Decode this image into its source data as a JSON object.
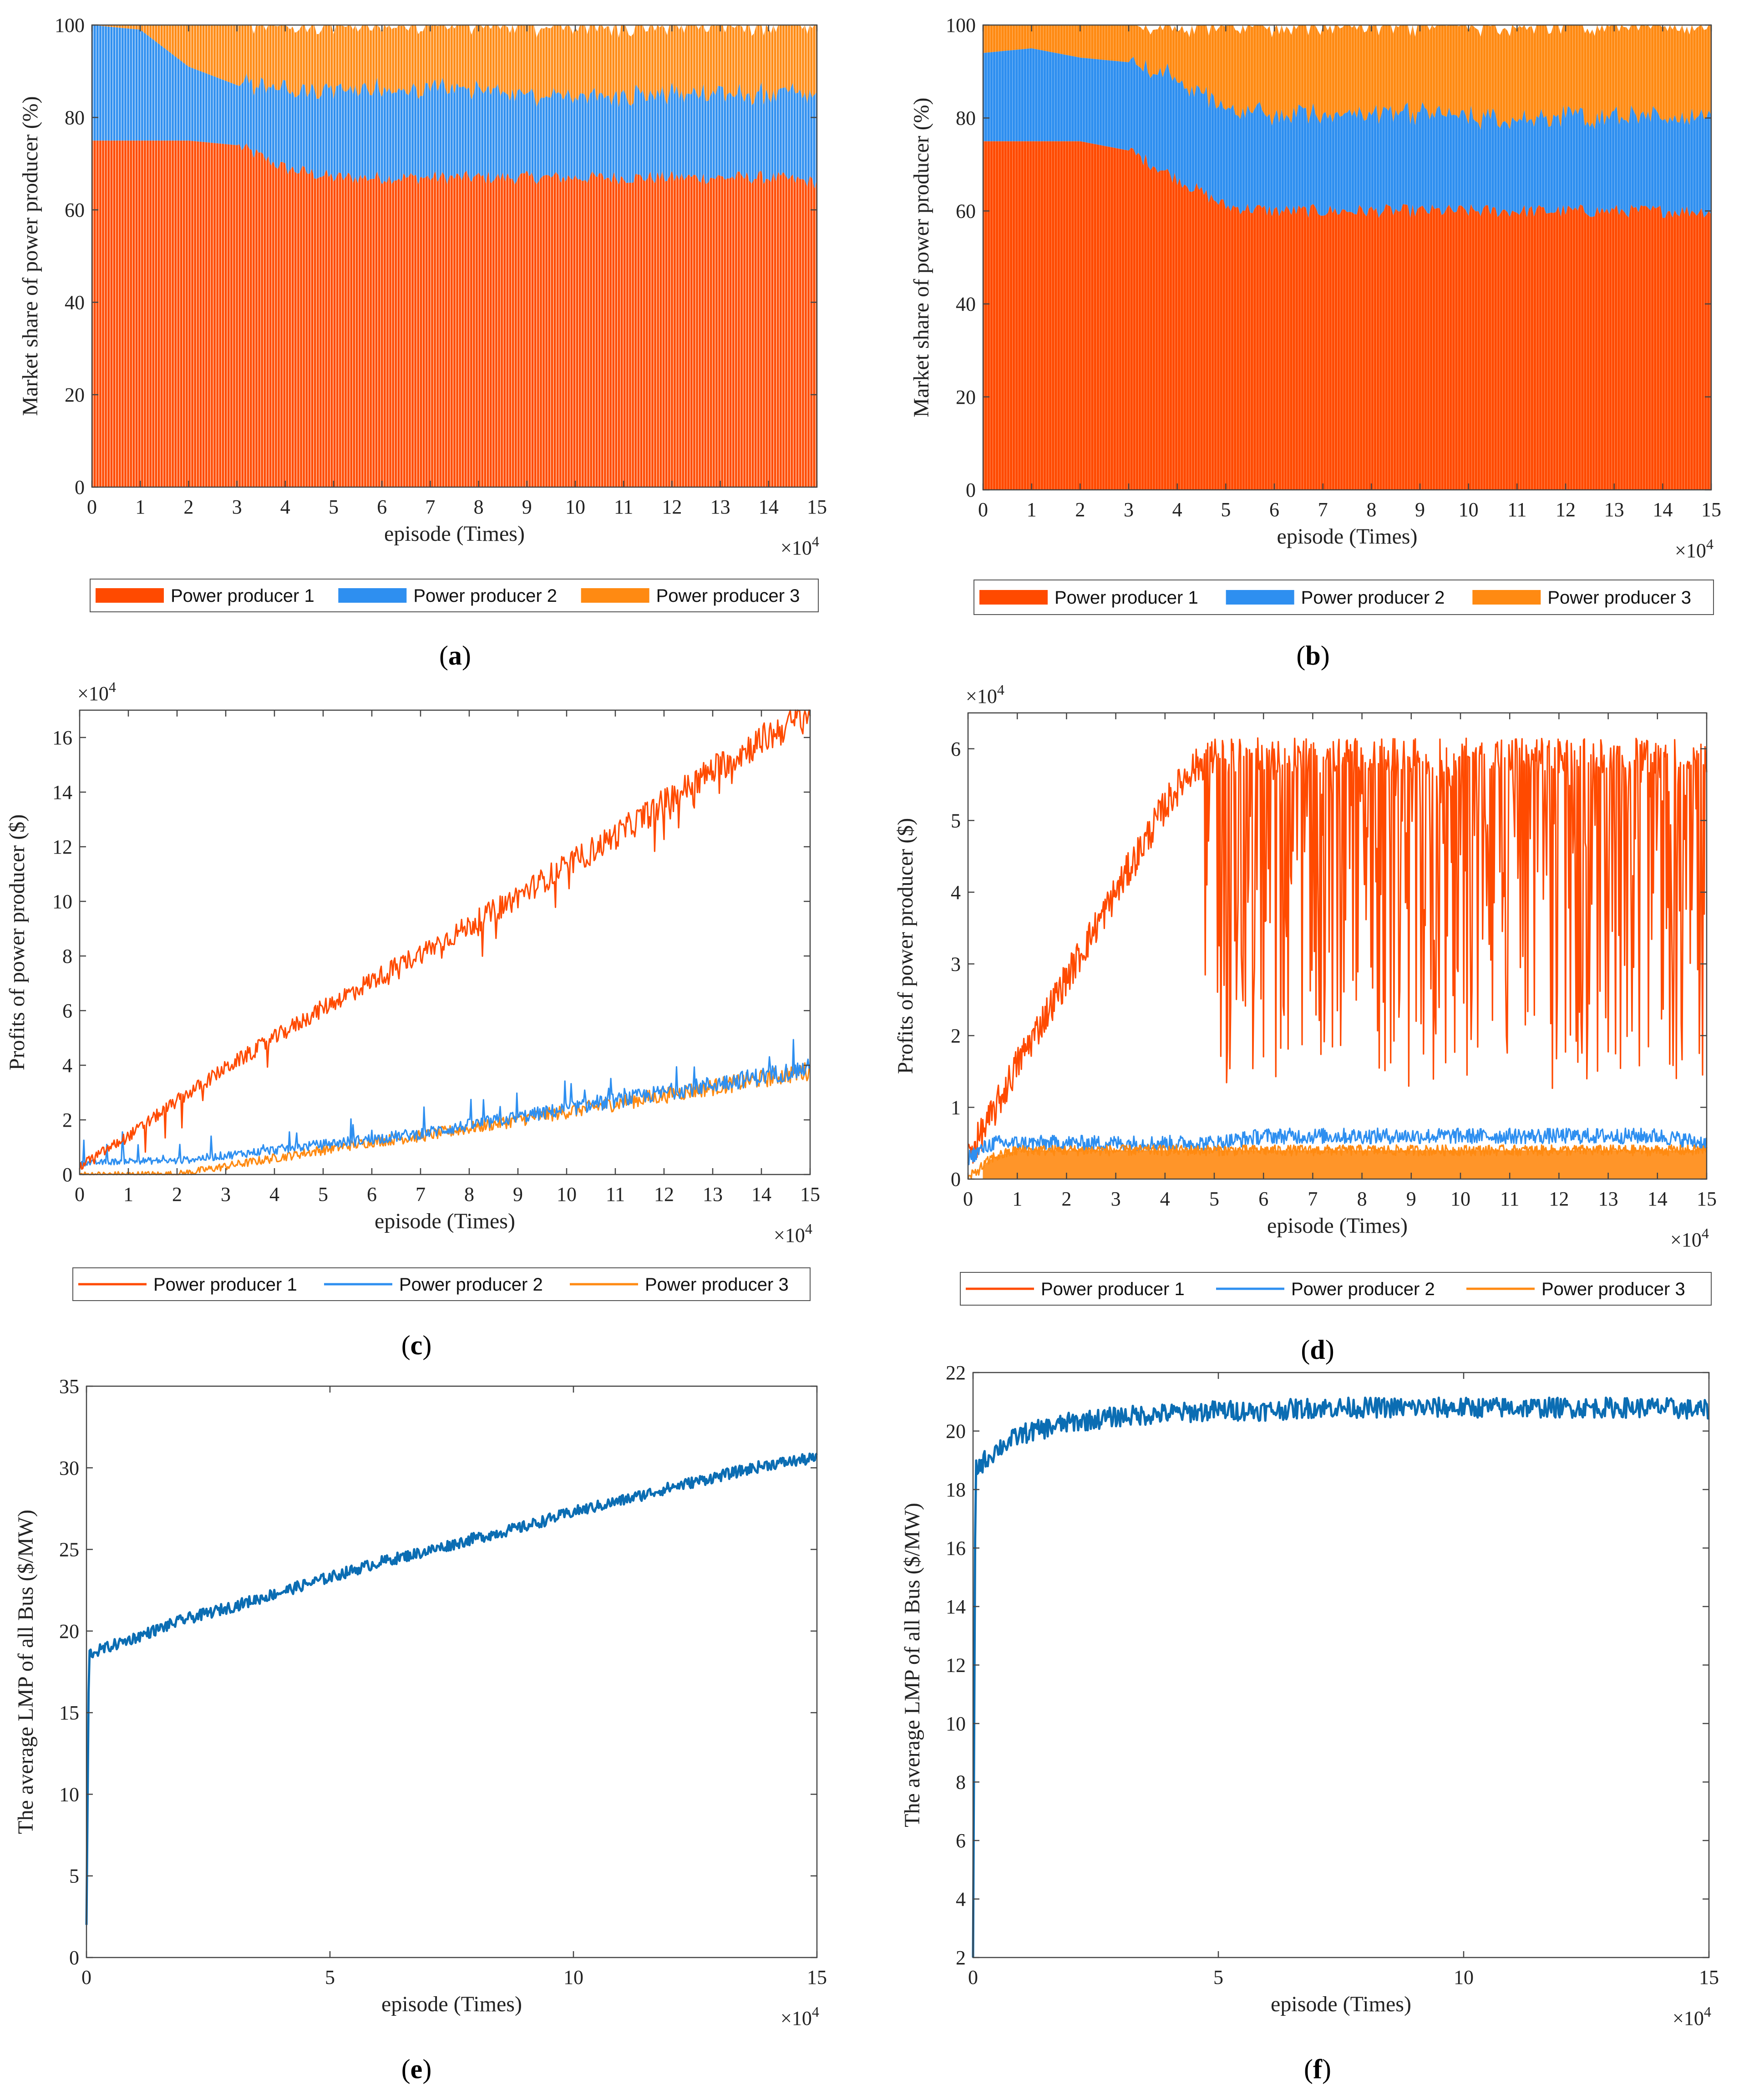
{
  "colors": {
    "p1": "#ff4a00",
    "p2": "#2e8ff0",
    "p3": "#ff8a12",
    "lmp": "#0b6db3",
    "axis": "#444444",
    "grid_text": "#222222"
  },
  "legend": {
    "labels": [
      "Power producer 1",
      "Power producer 2",
      "Power producer 3"
    ]
  },
  "chart_data": [
    {
      "id": "a",
      "type": "area",
      "panel_label": "a",
      "xlabel": "episode (Times)",
      "ylabel": "Market share of power producer (%)",
      "x_multiplier": "×10",
      "x_multiplier_exp": "4",
      "xlim": [
        0,
        15
      ],
      "ylim": [
        0,
        100
      ],
      "xticks": [
        0,
        1,
        2,
        3,
        4,
        5,
        6,
        7,
        8,
        9,
        10,
        11,
        12,
        13,
        14,
        15
      ],
      "yticks": [
        0,
        20,
        40,
        60,
        80,
        100
      ],
      "x": [
        0,
        1,
        2,
        3,
        4,
        5,
        6,
        7,
        8,
        9,
        10,
        11,
        12,
        13,
        14,
        15
      ],
      "series": [
        {
          "name": "Power producer 1",
          "values": [
            75,
            75,
            75,
            74,
            69,
            67,
            67,
            67,
            67,
            67,
            67,
            67,
            67,
            67,
            67,
            66
          ]
        },
        {
          "name": "Power producer 2",
          "values": [
            25,
            24,
            16,
            13,
            17,
            19,
            19,
            19,
            19,
            18,
            18,
            18,
            18,
            18,
            18,
            19
          ]
        },
        {
          "name": "Power producer 3",
          "values": [
            0,
            1,
            9,
            13,
            14,
            14,
            14,
            14,
            14,
            15,
            15,
            15,
            15,
            15,
            15,
            15
          ]
        }
      ]
    },
    {
      "id": "b",
      "type": "area",
      "panel_label": "b",
      "xlabel": "episode (Times)",
      "ylabel": "Market share of power producer (%)",
      "x_multiplier": "×10",
      "x_multiplier_exp": "4",
      "xlim": [
        0,
        15
      ],
      "ylim": [
        0,
        100
      ],
      "xticks": [
        0,
        1,
        2,
        3,
        4,
        5,
        6,
        7,
        8,
        9,
        10,
        11,
        12,
        13,
        14,
        15
      ],
      "yticks": [
        0,
        20,
        40,
        60,
        80,
        100
      ],
      "x": [
        0,
        1,
        2,
        3,
        4,
        5,
        6,
        7,
        8,
        9,
        10,
        11,
        12,
        13,
        14,
        15
      ],
      "series": [
        {
          "name": "Power producer 1",
          "values": [
            75,
            75,
            75,
            73,
            67,
            61,
            60,
            60,
            60,
            60,
            60,
            60,
            60,
            60,
            60,
            60
          ]
        },
        {
          "name": "Power producer 2",
          "values": [
            19,
            20,
            18,
            19,
            22,
            21,
            21,
            21,
            21,
            21,
            20,
            20,
            20,
            20,
            20,
            21
          ]
        },
        {
          "name": "Power producer 3",
          "values": [
            6,
            5,
            7,
            8,
            11,
            18,
            19,
            19,
            19,
            19,
            20,
            20,
            20,
            20,
            20,
            19
          ]
        }
      ]
    },
    {
      "id": "c",
      "type": "line",
      "panel_label": "c",
      "xlabel": "episode (Times)",
      "ylabel": "Profits of power producer ($)",
      "x_multiplier": "×10",
      "x_multiplier_exp": "4",
      "y_multiplier": "×10",
      "y_multiplier_exp": "4",
      "xlim": [
        0,
        15
      ],
      "ylim": [
        0,
        17
      ],
      "xticks": [
        0,
        1,
        2,
        3,
        4,
        5,
        6,
        7,
        8,
        9,
        10,
        11,
        12,
        13,
        14,
        15
      ],
      "yticks": [
        0,
        2,
        4,
        6,
        8,
        10,
        12,
        14,
        16
      ],
      "x": [
        0,
        1,
        2,
        3,
        4,
        5,
        6,
        7,
        8,
        9,
        10,
        11,
        12,
        13,
        14,
        15
      ],
      "series": [
        {
          "name": "Power producer 1",
          "values": [
            0.3,
            1.4,
            2.7,
            3.9,
            5.0,
            6.1,
            7.1,
            8.1,
            9.1,
            10.2,
            11.3,
            12.4,
            13.6,
            14.8,
            15.9,
            16.9
          ]
        },
        {
          "name": "Power producer 2",
          "values": [
            0.4,
            0.5,
            0.5,
            0.7,
            0.9,
            1.1,
            1.3,
            1.5,
            1.8,
            2.1,
            2.4,
            2.7,
            3.0,
            3.3,
            3.6,
            3.9
          ]
        },
        {
          "name": "Power producer 3",
          "values": [
            0.0,
            0.0,
            0.0,
            0.3,
            0.6,
            0.9,
            1.2,
            1.4,
            1.7,
            2.0,
            2.3,
            2.6,
            2.9,
            3.2,
            3.5,
            3.8
          ]
        }
      ]
    },
    {
      "id": "d",
      "type": "line",
      "panel_label": "d",
      "xlabel": "episode (Times)",
      "ylabel": "Profits of power producer ($)",
      "x_multiplier": "×10",
      "x_multiplier_exp": "4",
      "y_multiplier": "×10",
      "y_multiplier_exp": "4",
      "xlim": [
        0,
        15
      ],
      "ylim": [
        0,
        6.5
      ],
      "xticks": [
        0,
        1,
        2,
        3,
        4,
        5,
        6,
        7,
        8,
        9,
        10,
        11,
        12,
        13,
        14,
        15
      ],
      "yticks": [
        0,
        1,
        2,
        3,
        4,
        5,
        6
      ],
      "x": [
        0,
        0.5,
        1,
        1.5,
        2,
        2.5,
        3,
        3.5,
        4,
        4.5,
        5,
        6,
        7,
        8,
        9,
        10,
        11,
        12,
        13,
        14,
        15
      ],
      "series": [
        {
          "name": "Power producer 1",
          "values": [
            0.3,
            0.9,
            1.6,
            2.2,
            2.8,
            3.4,
            4.0,
            4.6,
            5.2,
            5.7,
            5.9,
            5.9,
            5.9,
            5.9,
            5.9,
            5.9,
            5.9,
            5.9,
            5.9,
            5.9,
            5.9
          ]
        },
        {
          "name": "Power producer 2",
          "values": [
            0.3,
            0.5,
            0.5,
            0.5,
            0.5,
            0.5,
            0.5,
            0.5,
            0.5,
            0.5,
            0.5,
            0.6,
            0.6,
            0.6,
            0.6,
            0.6,
            0.6,
            0.6,
            0.6,
            0.6,
            0.5
          ]
        },
        {
          "name": "Power producer 3",
          "values": [
            0.0,
            0.3,
            0.4,
            0.4,
            0.4,
            0.4,
            0.4,
            0.4,
            0.4,
            0.4,
            0.4,
            0.4,
            0.4,
            0.4,
            0.4,
            0.4,
            0.4,
            0.4,
            0.4,
            0.4,
            0.4
          ]
        }
      ]
    },
    {
      "id": "e",
      "type": "line",
      "panel_label": "e",
      "xlabel": "episode (Times)",
      "ylabel": "The average LMP of all Bus ($/MW)",
      "x_multiplier": "×10",
      "x_multiplier_exp": "4",
      "xlim": [
        0,
        15
      ],
      "ylim": [
        0,
        35
      ],
      "xticks": [
        0,
        5,
        10,
        15
      ],
      "yticks": [
        0,
        5,
        10,
        15,
        20,
        25,
        30,
        35
      ],
      "x": [
        0,
        0.05,
        1,
        2,
        3,
        4,
        5,
        6,
        7,
        8,
        9,
        10,
        11,
        12,
        13,
        14,
        15
      ],
      "series": [
        {
          "name": "Average LMP",
          "values": [
            2,
            18.6,
            19.6,
            20.7,
            21.5,
            22.4,
            23.3,
            24.2,
            24.9,
            25.7,
            26.4,
            27.3,
            28.0,
            28.8,
            29.5,
            30.2,
            30.6
          ]
        }
      ]
    },
    {
      "id": "f",
      "type": "line",
      "panel_label": "f",
      "xlabel": "episode (Times)",
      "ylabel": "The average LMP of all Bus ($/MW)",
      "x_multiplier": "×10",
      "x_multiplier_exp": "4",
      "xlim": [
        0,
        15
      ],
      "ylim": [
        2,
        22
      ],
      "xticks": [
        0,
        5,
        10,
        15
      ],
      "yticks": [
        2,
        4,
        6,
        8,
        10,
        12,
        14,
        16,
        18,
        20,
        22
      ],
      "x": [
        0,
        0.05,
        0.5,
        1,
        2,
        3,
        4,
        5,
        6,
        7,
        8,
        9,
        10,
        11,
        12,
        13,
        14,
        15
      ],
      "series": [
        {
          "name": "Average LMP",
          "values": [
            2,
            18.7,
            19.4,
            19.9,
            20.3,
            20.5,
            20.6,
            20.7,
            20.7,
            20.8,
            20.8,
            20.8,
            20.8,
            20.8,
            20.8,
            20.8,
            20.8,
            20.7
          ]
        }
      ]
    }
  ]
}
